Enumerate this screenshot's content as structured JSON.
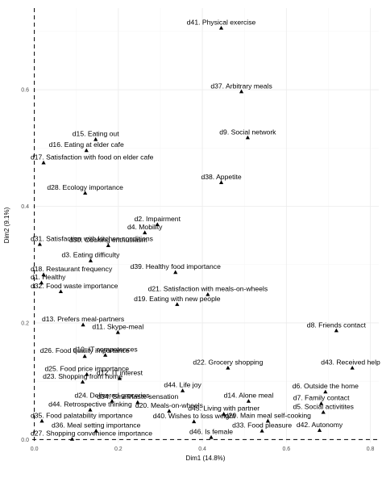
{
  "chart_data": {
    "type": "scatter",
    "title": "",
    "xlabel": "Dim1 (14.8%)",
    "ylabel": "Dim2 (9.1%)",
    "xlim": [
      -0.005,
      0.82
    ],
    "ylim": [
      -0.005,
      0.74
    ],
    "x_ticks": [
      0.0,
      0.2,
      0.4,
      0.6,
      0.8
    ],
    "x_tick_labels": [
      "0.0",
      "0.2",
      "0.4",
      "0.6",
      "0.8"
    ],
    "y_ticks": [
      0.0,
      0.2,
      0.4,
      0.6
    ],
    "y_tick_labels": [
      "0.0",
      "0.2",
      "0.4",
      "0.6"
    ],
    "grid": true,
    "reference_lines": {
      "x": 0,
      "y": 0
    },
    "marker": "triangle",
    "points": [
      {
        "label": "d41. Physical exercise",
        "x": 0.445,
        "y": 0.706
      },
      {
        "label": "d37. Arbitrary meals",
        "x": 0.493,
        "y": 0.597
      },
      {
        "label": "d9. Social network",
        "x": 0.508,
        "y": 0.518
      },
      {
        "label": "d15. Eating out",
        "x": 0.146,
        "y": 0.515
      },
      {
        "label": "d16. Eating at elder cafe",
        "x": 0.124,
        "y": 0.496
      },
      {
        "label": "d17. Satisfaction with food on elder cafe",
        "x": 0.022,
        "y": 0.475
      },
      {
        "label": "d38. Appetite",
        "x": 0.445,
        "y": 0.441
      },
      {
        "label": "d28. Ecology importance",
        "x": 0.121,
        "y": 0.423
      },
      {
        "label": "d2. Impairment",
        "x": 0.293,
        "y": 0.369
      },
      {
        "label": "d4. Mobility",
        "x": 0.263,
        "y": 0.355
      },
      {
        "label": "d31. Satisfaction with kitchen conditions",
        "x": 0.013,
        "y": 0.335
      },
      {
        "label": "d30. Cooking enthusiasm",
        "x": 0.176,
        "y": 0.333
      },
      {
        "label": "d3. Eating difficulty",
        "x": 0.134,
        "y": 0.307
      },
      {
        "label": "d39. Healthy food importance",
        "x": 0.336,
        "y": 0.287
      },
      {
        "label": "d18. Restaurant frequency",
        "x": 0.022,
        "y": 0.283
      },
      {
        "label": "d1. Healthy",
        "x": 0.017,
        "y": 0.269
      },
      {
        "label": "d32. Food waste importance",
        "x": 0.063,
        "y": 0.254
      },
      {
        "label": "d21. Satisfaction with meals-on-wheels",
        "x": 0.413,
        "y": 0.249
      },
      {
        "label": "d19. Eating with new people",
        "x": 0.34,
        "y": 0.232
      },
      {
        "label": "d13. Prefers meal-partners",
        "x": 0.116,
        "y": 0.197
      },
      {
        "label": "d11. Skype-meal",
        "x": 0.199,
        "y": 0.184
      },
      {
        "label": "d8. Friends contact",
        "x": 0.719,
        "y": 0.187
      },
      {
        "label": "d10. IT competences",
        "x": 0.169,
        "y": 0.145
      },
      {
        "label": "d26. Food quality importance",
        "x": 0.12,
        "y": 0.143
      },
      {
        "label": "d22. Grocery shopping",
        "x": 0.461,
        "y": 0.123
      },
      {
        "label": "d43. Received help",
        "x": 0.757,
        "y": 0.123
      },
      {
        "label": "d25. Food price importance",
        "x": 0.125,
        "y": 0.112
      },
      {
        "label": "d12. IT interest",
        "x": 0.203,
        "y": 0.105
      },
      {
        "label": "d23. Shopping from home",
        "x": 0.115,
        "y": 0.099
      },
      {
        "label": "d6. Outside the home",
        "x": 0.693,
        "y": 0.082
      },
      {
        "label": "d44. Life joy",
        "x": 0.353,
        "y": 0.084
      },
      {
        "label": "d24. Delivered groceries",
        "x": 0.185,
        "y": 0.066
      },
      {
        "label": "d34. Smell/taste sensation",
        "x": 0.246,
        "y": 0.064
      },
      {
        "label": "d14. Alone meal",
        "x": 0.51,
        "y": 0.066
      },
      {
        "label": "d7. Family contact",
        "x": 0.683,
        "y": 0.062
      },
      {
        "label": "d5. Social activitites",
        "x": 0.688,
        "y": 0.047
      },
      {
        "label": "d44. Retrospective thinking",
        "x": 0.133,
        "y": 0.051
      },
      {
        "label": "d20. Meals-on-wheels",
        "x": 0.321,
        "y": 0.049
      },
      {
        "label": "d45. Living with partner",
        "x": 0.451,
        "y": 0.044
      },
      {
        "label": "d35. Food palatability importance",
        "x": 0.018,
        "y": 0.032
      },
      {
        "label": "d40. Wishes to loss weight",
        "x": 0.38,
        "y": 0.031
      },
      {
        "label": "d29. Main meal self-cooking",
        "x": 0.556,
        "y": 0.032
      },
      {
        "label": "d36. Meal setting importance",
        "x": 0.147,
        "y": 0.015
      },
      {
        "label": "d33. Food pleasure",
        "x": 0.542,
        "y": 0.015
      },
      {
        "label": "d42. Autonomy",
        "x": 0.679,
        "y": 0.016
      },
      {
        "label": "d27. Shopping convenience importance",
        "x": 0.09,
        "y": 0.001
      },
      {
        "label": "d46. Is female",
        "x": 0.421,
        "y": 0.004
      }
    ]
  }
}
